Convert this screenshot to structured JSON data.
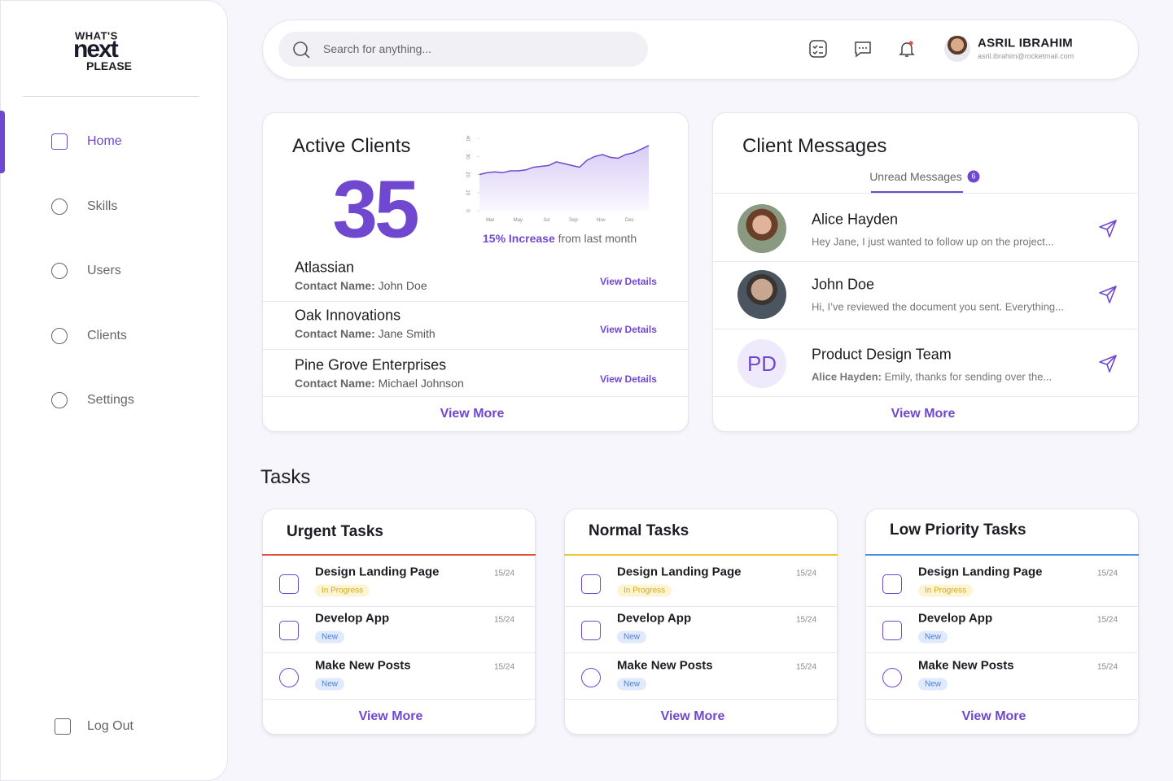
{
  "sidebar": {
    "logo": [
      "WHAT'S",
      "next",
      "PLEASE"
    ],
    "nav": [
      "Home",
      "Skills",
      "Users",
      "Clients",
      "Settings"
    ],
    "logout": "Log Out"
  },
  "header": {
    "search_placeholder": "Search for anything...",
    "user": {
      "name": "ASRIL IBRAHIM",
      "email": "asril.ibrahim@rocketmail.com"
    }
  },
  "active_clients": {
    "title": "Active Clients",
    "count": 35,
    "chart": {
      "type": "line",
      "x": [
        0,
        1,
        2,
        3,
        4,
        5,
        6,
        7,
        8,
        9,
        10,
        11,
        12,
        13,
        14,
        15,
        16,
        17,
        18,
        19,
        20,
        21,
        22
      ],
      "values": [
        20,
        21,
        21.5,
        21,
        22,
        22,
        22.5,
        24,
        24.5,
        25,
        27,
        26,
        25,
        24,
        28,
        30,
        31,
        29.5,
        29,
        31,
        32,
        34,
        36
      ],
      "xlim": [
        0,
        22
      ],
      "ylim": [
        0,
        40
      ],
      "yticks": [
        0,
        10,
        20,
        30,
        40
      ],
      "xticks": [
        {
          "value": 1.4,
          "label": "Mar"
        },
        {
          "value": 5,
          "label": "May"
        },
        {
          "value": 8.7,
          "label": "Jul"
        },
        {
          "value": 12.2,
          "label": "Sep"
        },
        {
          "value": 15.8,
          "label": "Nov"
        },
        {
          "value": 19.5,
          "label": "Dec"
        }
      ],
      "color": "#7048d0"
    },
    "increase": "15% Increase",
    "increase_suffix": "from last month",
    "clients": [
      {
        "name": "Atlassian",
        "contact_label": "Contact Name:",
        "contact": "John Doe",
        "action": "View Details"
      },
      {
        "name": "Oak Innovations",
        "contact_label": "Contact Name:",
        "contact": "Jane Smith",
        "action": "View Details"
      },
      {
        "name": "Pine Grove Enterprises",
        "contact_label": "Contact Name:",
        "contact": "Michael Johnson",
        "action": "View Details"
      }
    ],
    "view_more": "View More"
  },
  "client_messages": {
    "title": "Client Messages",
    "tab": "Unread Messages",
    "badge": 6,
    "messages": [
      {
        "name": "Alice Hayden",
        "text": "Hey Jane, I just wanted to follow up on the project..."
      },
      {
        "name": "John Doe",
        "text": "Hi, I’ve reviewed the document you sent. Everything..."
      },
      {
        "name": "Product Design Team",
        "initials": "PD",
        "sender": "Alice Hayden:",
        "text": "Emily, thanks for sending over the..."
      }
    ],
    "view_more": "View More"
  },
  "tasks": {
    "title": "Tasks",
    "groups": [
      {
        "title": "Urgent Tasks",
        "color": "#e0503a",
        "items": [
          {
            "name": "Design Landing Page",
            "status": "In Progress",
            "date": "15/24"
          },
          {
            "name": "Develop App",
            "status": "New",
            "date": "15/24"
          },
          {
            "name": "Make New Posts",
            "status": "New",
            "date": "15/24"
          }
        ],
        "view_more": "View More"
      },
      {
        "title": "Normal Tasks",
        "color": "#f2c230",
        "items": [
          {
            "name": "Design Landing Page",
            "status": "In Progress",
            "date": "15/24"
          },
          {
            "name": "Develop App",
            "status": "New",
            "date": "15/24"
          },
          {
            "name": "Make New Posts",
            "status": "New",
            "date": "15/24"
          }
        ],
        "view_more": "View More"
      },
      {
        "title": "Low Priority Tasks",
        "color": "#4a8ee8",
        "items": [
          {
            "name": "Design Landing Page",
            "status": "In Progress",
            "date": "15/24"
          },
          {
            "name": "Develop App",
            "status": "New",
            "date": "15/24"
          },
          {
            "name": "Make New Posts",
            "status": "New",
            "date": "15/24"
          }
        ],
        "view_more": "View More"
      }
    ]
  }
}
